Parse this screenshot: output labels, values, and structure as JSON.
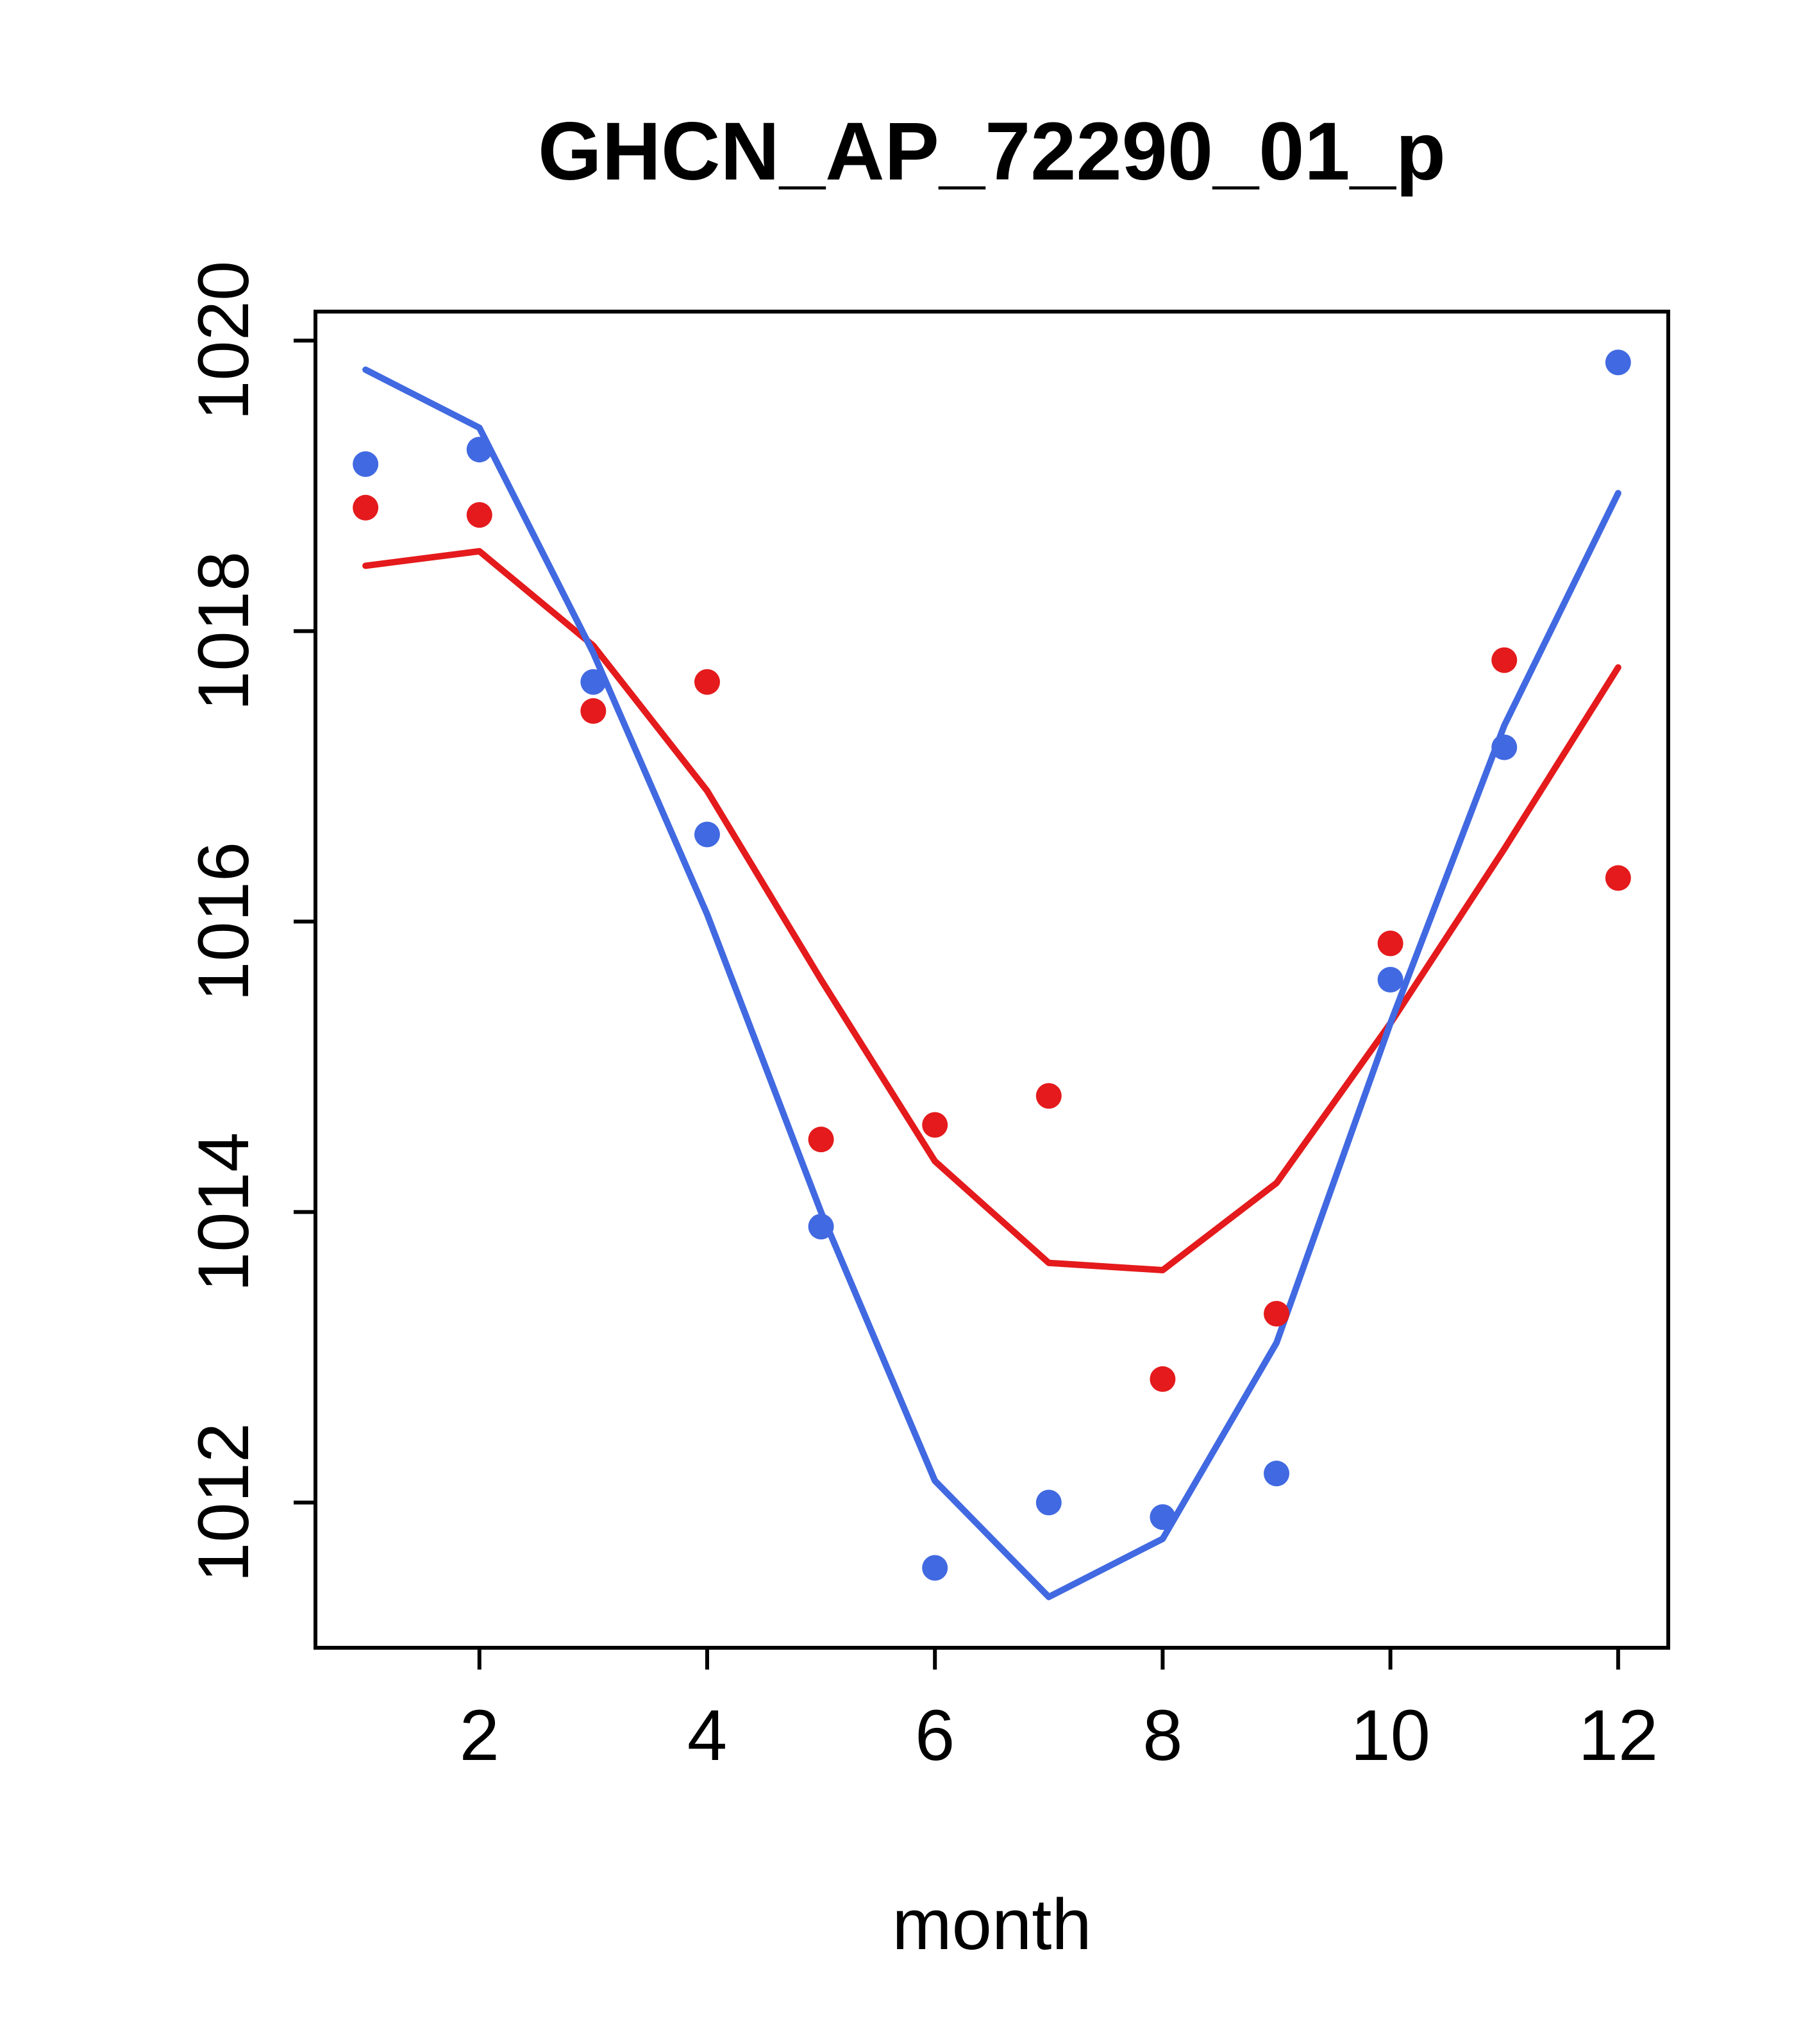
{
  "title": "GHCN_AP_72290_01_p",
  "xlabel": "month",
  "colors": {
    "blue": "#4169E1",
    "red": "#E41A1C",
    "axis": "#000000",
    "background": "#FFFFFF"
  },
  "chart_data": {
    "type": "scatter",
    "title": "GHCN_AP_72290_01_p",
    "xlabel": "month",
    "ylabel": "",
    "x": [
      1,
      2,
      3,
      4,
      5,
      6,
      7,
      8,
      9,
      10,
      11,
      12
    ],
    "xticks": [
      2,
      4,
      6,
      8,
      10,
      12
    ],
    "yticks": [
      1012,
      1014,
      1016,
      1018,
      1020
    ],
    "xlim": [
      0.56,
      12.44
    ],
    "ylim": [
      1011.0,
      1020.2
    ],
    "grid": false,
    "legend": "none",
    "series": [
      {
        "name": "blue-points",
        "kind": "points",
        "color": "#4169E1",
        "values": [
          1019.15,
          1019.25,
          1017.65,
          1016.6,
          1013.9,
          1011.55,
          1012.0,
          1011.9,
          1012.2,
          1015.6,
          1017.2,
          1019.85
        ]
      },
      {
        "name": "red-points",
        "kind": "points",
        "color": "#E41A1C",
        "values": [
          1018.85,
          1018.8,
          1017.45,
          1017.65,
          1014.5,
          1014.6,
          1014.8,
          1012.85,
          1013.3,
          1015.85,
          1017.8,
          1016.3
        ]
      },
      {
        "name": "red-line",
        "kind": "line",
        "color": "#E41A1C",
        "values": [
          1018.45,
          1018.55,
          1017.9,
          1016.9,
          1015.6,
          1014.35,
          1013.65,
          1013.6,
          1014.2,
          1015.3,
          1016.5,
          1017.75
        ]
      },
      {
        "name": "blue-line",
        "kind": "line",
        "color": "#4169E1",
        "values": [
          1019.8,
          1019.4,
          1017.85,
          1016.05,
          1014.0,
          1012.15,
          1011.35,
          1011.75,
          1013.1,
          1015.3,
          1017.35,
          1018.95
        ]
      }
    ]
  }
}
